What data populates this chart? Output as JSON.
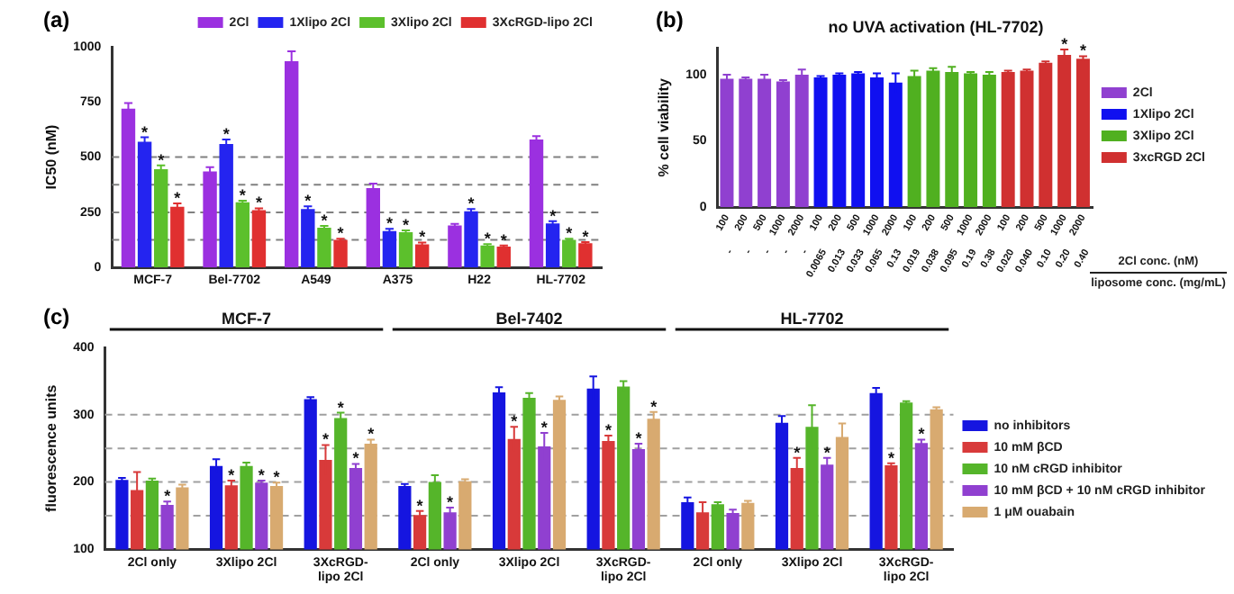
{
  "chart_data": [
    {
      "type": "bar",
      "annotations": [
        "(a)"
      ],
      "ylabel": "IC50 (nM)",
      "categories": [
        "MCF-7",
        "Bel-7702",
        "A549",
        "A375",
        "H22",
        "HL-7702"
      ],
      "ylim": [
        0,
        1000
      ],
      "yticks": [
        0,
        250,
        500,
        750,
        1000
      ],
      "legend": "top right",
      "ref_lines": [
        {
          "axis": "y",
          "value": 125,
          "color": "#808080",
          "line_style": "dashed"
        },
        {
          "axis": "y",
          "value": 250,
          "color": "#808080",
          "line_style": "dashed"
        },
        {
          "axis": "y",
          "value": 375,
          "color": "#808080",
          "line_style": "dashed"
        },
        {
          "axis": "y",
          "value": 500,
          "color": "#808080",
          "line_style": "dashed"
        }
      ],
      "series": [
        {
          "name": "2Cl",
          "color": "#9b30e0",
          "values": [
            720,
            435,
            935,
            360,
            190,
            580
          ],
          "errors": [
            25,
            20,
            45,
            20,
            8,
            15
          ]
        },
        {
          "name": "1Xlipo 2Cl",
          "color": "#2424f0",
          "values": [
            570,
            560,
            265,
            165,
            255,
            200
          ],
          "errors": [
            20,
            20,
            12,
            10,
            10,
            10
          ],
          "value_labels": [
            "*",
            "*",
            "*",
            "*",
            "*",
            "*"
          ]
        },
        {
          "name": "3Xlipo 2Cl",
          "color": "#5cc02c",
          "values": [
            445,
            295,
            180,
            160,
            100,
            125
          ],
          "errors": [
            18,
            8,
            8,
            8,
            6,
            5
          ],
          "value_labels": [
            "*",
            "*",
            "*",
            "*",
            "*",
            "*"
          ]
        },
        {
          "name": "3XcRGD-lipo 2Cl",
          "color": "#e03030",
          "values": [
            275,
            260,
            125,
            105,
            95,
            110
          ],
          "errors": [
            15,
            8,
            5,
            8,
            5,
            5
          ],
          "value_labels": [
            "*",
            "*",
            "*",
            "*",
            "*",
            "*"
          ]
        }
      ]
    },
    {
      "type": "bar",
      "title": "no UVA activation (HL-7702)",
      "annotations": [
        "(b)",
        "liposome conc. (mg/mL)"
      ],
      "ylabel": "% cell viability",
      "xlabel": "2Cl conc. (nM)",
      "ylim": [
        0,
        120
      ],
      "yticks": [
        0,
        50,
        100
      ],
      "legend": "right",
      "categories": [
        "100\n-",
        "200\n-",
        "500\n-",
        "1000\n-",
        "2000\n-",
        "100\n0.0065",
        "200\n0.013",
        "500\n0.033",
        "1000\n0.065",
        "2000\n0.13",
        "100\n0.019",
        "200\n0.038",
        "500\n0.095",
        "1000\n0.19",
        "2000\n0.38",
        "100\n0.020",
        "200\n0.040",
        "500\n0.10",
        "1000\n0.20",
        "2000\n0.40"
      ],
      "series": [
        {
          "name": "2Cl",
          "color": "#9040d0",
          "values": [
            97,
            97,
            97,
            95,
            100,
            null,
            null,
            null,
            null,
            null,
            null,
            null,
            null,
            null,
            null,
            null,
            null,
            null,
            null,
            null
          ],
          "errors": [
            3,
            1,
            3,
            1,
            4,
            null,
            null,
            null,
            null,
            null,
            null,
            null,
            null,
            null,
            null,
            null,
            null,
            null,
            null,
            null
          ]
        },
        {
          "name": "1Xlipo 2Cl",
          "color": "#1010f0",
          "values": [
            null,
            null,
            null,
            null,
            null,
            98,
            100,
            101,
            98,
            94,
            null,
            null,
            null,
            null,
            null,
            null,
            null,
            null,
            null,
            null
          ],
          "errors": [
            null,
            null,
            null,
            null,
            null,
            1,
            1,
            1,
            3,
            7,
            null,
            null,
            null,
            null,
            null,
            null,
            null,
            null,
            null,
            null
          ]
        },
        {
          "name": "3Xlipo 2Cl",
          "color": "#50b020",
          "values": [
            null,
            null,
            null,
            null,
            null,
            null,
            null,
            null,
            null,
            null,
            99,
            103,
            102,
            101,
            100,
            null,
            null,
            null,
            null,
            null
          ],
          "errors": [
            null,
            null,
            null,
            null,
            null,
            null,
            null,
            null,
            null,
            null,
            4,
            2,
            4,
            1,
            2,
            null,
            null,
            null,
            null,
            null
          ]
        },
        {
          "name": "3xcRGD 2Cl",
          "color": "#d03030",
          "values": [
            null,
            null,
            null,
            null,
            null,
            null,
            null,
            null,
            null,
            null,
            null,
            null,
            null,
            null,
            null,
            102,
            103,
            109,
            115,
            112
          ],
          "errors": [
            null,
            null,
            null,
            null,
            null,
            null,
            null,
            null,
            null,
            null,
            null,
            null,
            null,
            null,
            null,
            1,
            1,
            1,
            4,
            2
          ],
          "value_labels": [
            null,
            null,
            null,
            null,
            null,
            null,
            null,
            null,
            null,
            null,
            null,
            null,
            null,
            null,
            null,
            null,
            null,
            null,
            "*",
            "*"
          ]
        }
      ]
    },
    {
      "type": "bar",
      "annotations": [
        "(c)",
        "MCF-7",
        "Bel-7402",
        "HL-7702"
      ],
      "ylabel": "fluorescence units",
      "categories": [
        "2Cl only",
        "3Xlipo 2Cl",
        "3XcRGD-lipo 2Cl",
        "2Cl only",
        "3Xlipo 2Cl",
        "3XcRGD-lipo 2Cl",
        "2Cl only",
        "3Xlipo 2Cl",
        "3XcRGD-lipo 2Cl"
      ],
      "ylim": [
        100,
        400
      ],
      "yticks": [
        100,
        200,
        300,
        400
      ],
      "legend": "right",
      "ref_lines": [
        {
          "axis": "y",
          "value": 150,
          "color": "#a0a0a0",
          "line_style": "dashed"
        },
        {
          "axis": "y",
          "value": 200,
          "color": "#a0a0a0",
          "line_style": "dashed"
        },
        {
          "axis": "y",
          "value": 250,
          "color": "#a0a0a0",
          "line_style": "dashed"
        },
        {
          "axis": "y",
          "value": 300,
          "color": "#a0a0a0",
          "line_style": "dashed"
        }
      ],
      "series": [
        {
          "name": "no inhibitors",
          "color": "#1515e0",
          "values": [
            203,
            224,
            323,
            194,
            333,
            339,
            170,
            288,
            332
          ],
          "errors": [
            3,
            10,
            3,
            3,
            8,
            18,
            7,
            10,
            8
          ]
        },
        {
          "name": "10 mM βCD",
          "color": "#d83a3a",
          "values": [
            188,
            195,
            233,
            151,
            264,
            261,
            155,
            221,
            225
          ],
          "errors": [
            27,
            7,
            22,
            6,
            18,
            8,
            15,
            15,
            3
          ],
          "value_labels": [
            null,
            "*",
            "*",
            "*",
            "*",
            "*",
            null,
            "*",
            "*"
          ]
        },
        {
          "name": "10 nM cRGD inhibitor",
          "color": "#55b52a",
          "values": [
            202,
            224,
            295,
            200,
            325,
            342,
            167,
            282,
            318
          ],
          "errors": [
            3,
            5,
            8,
            10,
            7,
            8,
            3,
            32,
            2
          ],
          "value_labels": [
            null,
            null,
            "*",
            null,
            null,
            null,
            null,
            null,
            null
          ]
        },
        {
          "name": "10 mM βCD + 10 nM cRGD inhibitor",
          "color": "#9040d0",
          "values": [
            166,
            199,
            221,
            155,
            253,
            249,
            154,
            226,
            258
          ],
          "errors": [
            5,
            3,
            6,
            7,
            20,
            8,
            5,
            10,
            5
          ],
          "value_labels": [
            "*",
            "*",
            "*",
            "*",
            "*",
            "*",
            null,
            "*",
            "*"
          ]
        },
        {
          "name": "1 μM ouabain",
          "color": "#d8aa70",
          "values": [
            192,
            194,
            257,
            201,
            322,
            294,
            169,
            267,
            308
          ],
          "errors": [
            4,
            5,
            6,
            3,
            5,
            10,
            3,
            20,
            3
          ],
          "value_labels": [
            null,
            "*",
            "*",
            null,
            null,
            "*",
            null,
            null,
            null
          ]
        }
      ]
    }
  ]
}
